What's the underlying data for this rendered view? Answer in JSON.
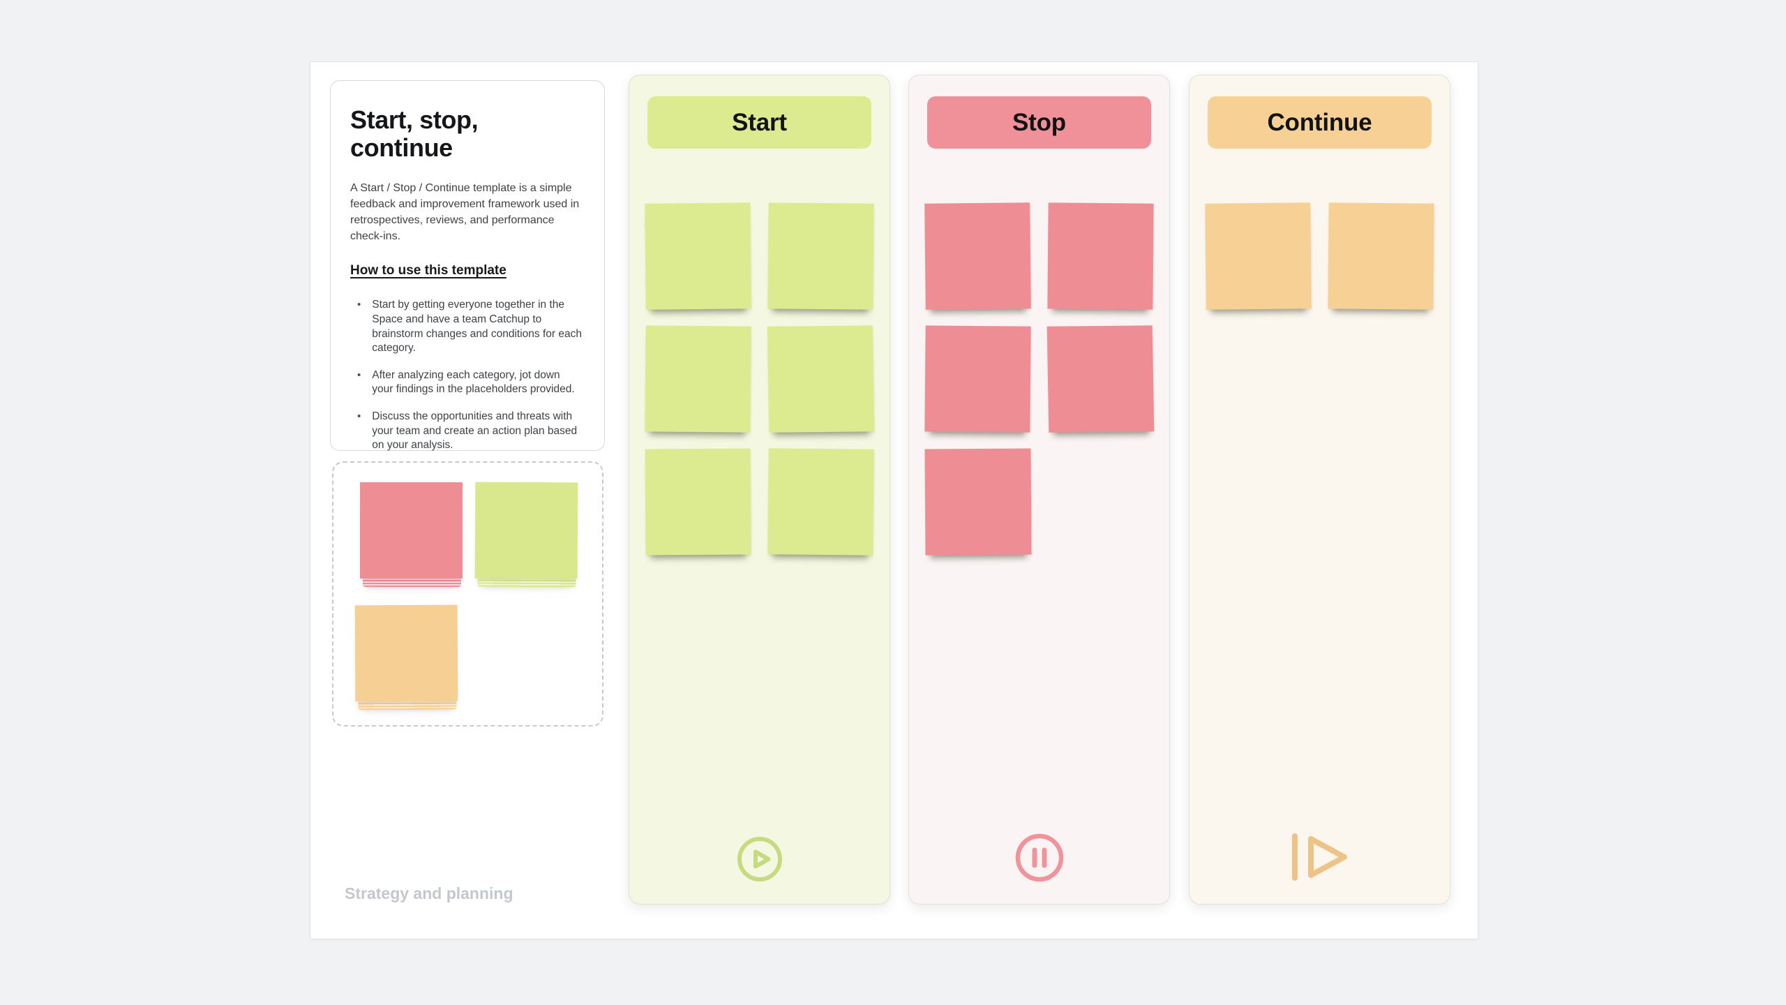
{
  "page": {
    "background": "#f1f2f4",
    "board_background": "#ffffff"
  },
  "info_card": {
    "title": "Start, stop, continue",
    "description": "A Start / Stop / Continue template is a simple feedback and improvement framework used in retrospectives, reviews, and performance check-ins.",
    "how_to_title": "How to use this template",
    "bullets": [
      "Start by getting everyone together in the Space and have a team Catchup to brainstorm changes and conditions for each category.",
      "After analyzing each category, jot down your findings in the placeholders provided.",
      "Discuss the opportunities and threats with your team and create an action plan based on your analysis."
    ],
    "category_label": "Strategy and planning"
  },
  "sample_notes": [
    {
      "name": "red-sticky-pad",
      "hex": "#ef8d95"
    },
    {
      "name": "green-sticky-pad",
      "hex": "#d9e88c"
    },
    {
      "name": "orange-sticky-pad",
      "hex": "#f6cf94"
    }
  ],
  "columns": [
    {
      "label": "Start",
      "column_bg": "#f4f8e2",
      "header_color": "#dcea90",
      "note_color": "#dcea90",
      "icon": "play-circle",
      "icon_color": "#c6db7f",
      "note_rows": [
        2,
        2,
        2
      ],
      "notes_count": 6
    },
    {
      "label": "Stop",
      "column_bg": "#faf5f4",
      "header_color": "#f0919a",
      "note_color": "#ef8d95",
      "icon": "pause-circle",
      "icon_color": "#f0939b",
      "note_rows": [
        2,
        2,
        1
      ],
      "notes_count": 5
    },
    {
      "label": "Continue",
      "column_bg": "#fbf7ef",
      "header_color": "#f7d095",
      "note_color": "#f7d095",
      "icon": "skip-forward",
      "icon_color": "#ecc488",
      "note_rows": [
        2
      ],
      "notes_count": 2
    }
  ]
}
